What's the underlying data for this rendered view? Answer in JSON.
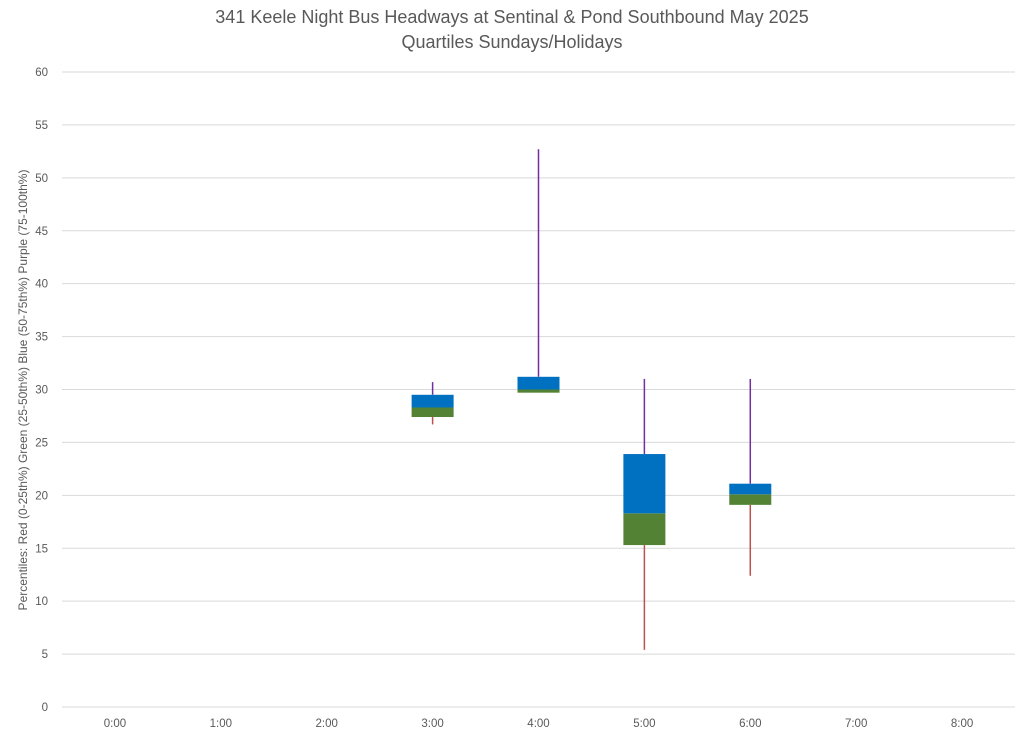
{
  "chart_data": {
    "type": "box",
    "title_line1": "341 Keele Night Bus Headways at Sentinal & Pond Southbound May 2025",
    "title_line2": "Quartiles Sundays/Holidays",
    "ylabel": "Percentiles:  Red (0-25th%)  Green (25-50th%)  Blue (50-75th%)  Purple (75-100th%)",
    "xlabel": "",
    "ylim": [
      0,
      60
    ],
    "yticks": [
      "0",
      "5",
      "10",
      "15",
      "20",
      "25",
      "30",
      "35",
      "40",
      "45",
      "50",
      "55",
      "60"
    ],
    "categories": [
      "0:00",
      "1:00",
      "2:00",
      "3:00",
      "4:00",
      "5:00",
      "6:00",
      "7:00",
      "8:00"
    ],
    "grid": true,
    "colors": {
      "min_to_q1": "#c0504d",
      "q1_to_median": "#548235",
      "median_to_q3": "#0070c0",
      "q3_to_max": "#7030a0",
      "grid": "#d9d9d9",
      "text": "#595959"
    },
    "boxes": [
      {
        "category": "3:00",
        "min": 26.7,
        "q1": 27.4,
        "median": 28.3,
        "q3": 29.5,
        "max": 30.7
      },
      {
        "category": "4:00",
        "min": 29.7,
        "q1": 29.7,
        "median": 30.0,
        "q3": 31.2,
        "max": 52.7
      },
      {
        "category": "5:00",
        "min": 5.4,
        "q1": 15.3,
        "median": 18.3,
        "q3": 23.9,
        "max": 31.0
      },
      {
        "category": "6:00",
        "min": 12.4,
        "q1": 19.1,
        "median": 20.1,
        "q3": 21.1,
        "max": 31.0
      }
    ]
  }
}
